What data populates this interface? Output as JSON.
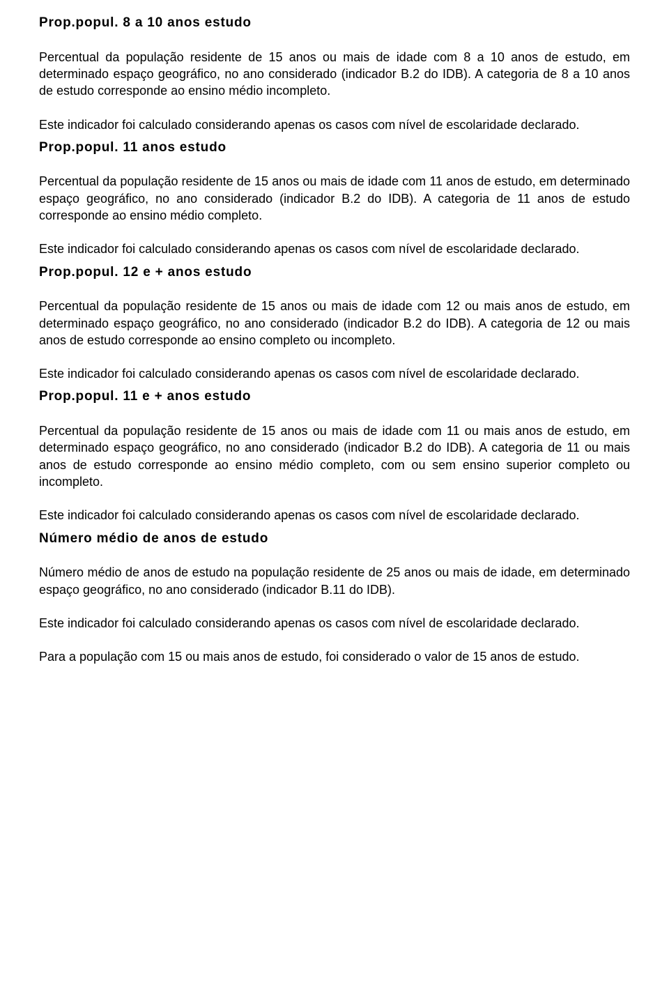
{
  "sections": [
    {
      "heading": "Prop.popul. 8 a 10 anos estudo",
      "paragraphs": [
        "Percentual da população residente de 15 anos ou mais de idade com 8 a 10 anos de estudo, em determinado espaço geográfico, no ano considerado (indicador B.2 do IDB). A categoria de 8 a 10 anos de estudo corresponde ao ensino médio incompleto.",
        "Este indicador foi calculado considerando apenas os casos com nível de escolaridade declarado."
      ]
    },
    {
      "heading": "Prop.popul. 11 anos estudo",
      "paragraphs": [
        "Percentual da população residente de 15 anos ou mais de idade com 11 anos de estudo, em determinado espaço geográfico, no ano considerado (indicador B.2 do IDB). A categoria de 11 anos de estudo corresponde ao ensino médio completo.",
        "Este indicador foi calculado considerando apenas os casos com nível de escolaridade declarado."
      ]
    },
    {
      "heading": "Prop.popul. 12 e + anos estudo",
      "paragraphs": [
        "Percentual da população residente de 15 anos ou mais de idade com 12 ou mais anos de estudo, em determinado espaço geográfico, no ano considerado (indicador B.2 do IDB). A categoria de 12 ou mais anos de estudo corresponde ao ensino completo ou incompleto.",
        "Este indicador foi calculado considerando apenas os casos com nível de escolaridade declarado."
      ]
    },
    {
      "heading": "Prop.popul. 11 e + anos estudo",
      "paragraphs": [
        "Percentual da população residente de 15 anos ou mais de idade com 11 ou mais anos de estudo, em determinado espaço geográfico, no ano considerado (indicador B.2 do IDB). A categoria de 11 ou mais anos de estudo corresponde ao ensino médio completo, com ou sem ensino superior completo ou incompleto.",
        "Este indicador foi calculado considerando apenas os casos com nível de escolaridade declarado."
      ]
    },
    {
      "heading": "Número médio de anos de estudo",
      "paragraphs": [
        "Número médio de anos de estudo na população residente de 25 anos ou mais de idade, em determinado espaço geográfico, no ano considerado (indicador B.11 do IDB).",
        "Este indicador foi calculado considerando apenas os casos com nível de escolaridade declarado.",
        "Para a população com 15 ou mais anos de estudo, foi considerado o valor de 15 anos de estudo."
      ]
    }
  ]
}
